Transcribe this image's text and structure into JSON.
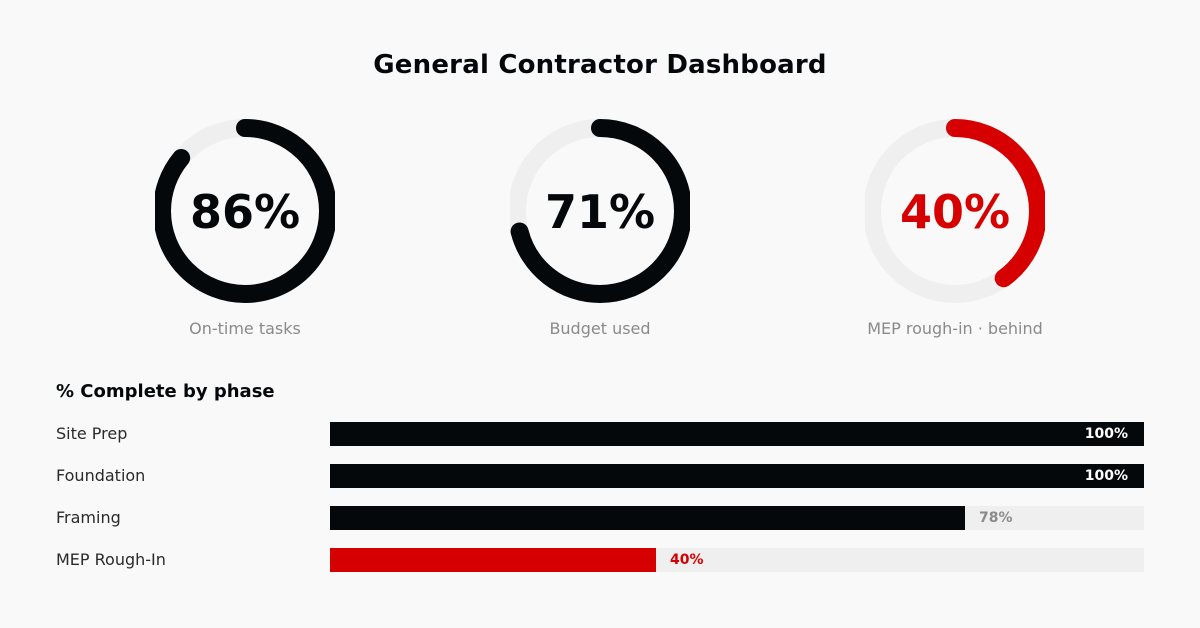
{
  "title": "General Contractor Dashboard",
  "colors": {
    "dark": "#05080b",
    "alert": "#d60000",
    "track": "#efefef",
    "label_muted": "#8a8a8a",
    "outside_label": "#8a8a8a"
  },
  "gauges": [
    {
      "value": 86,
      "value_label": "86%",
      "label": "On-time tasks",
      "status": "normal"
    },
    {
      "value": 71,
      "value_label": "71%",
      "label": "Budget used",
      "status": "normal"
    },
    {
      "value": 40,
      "value_label": "40%",
      "label": "MEP rough-in · behind",
      "status": "alert"
    }
  ],
  "phase_chart": {
    "title": "% Complete by phase",
    "rows": [
      {
        "label": "Site Prep",
        "value": 100,
        "value_label": "100%",
        "status": "normal"
      },
      {
        "label": "Foundation",
        "value": 100,
        "value_label": "100%",
        "status": "normal"
      },
      {
        "label": "Framing",
        "value": 78,
        "value_label": "78%",
        "status": "normal"
      },
      {
        "label": "MEP Rough-In",
        "value": 40,
        "value_label": "40%",
        "status": "alert"
      }
    ]
  },
  "chart_data": [
    {
      "type": "pie",
      "variant": "donut-gauges",
      "title": "",
      "categories": [
        "On-time tasks",
        "Budget used",
        "MEP rough-in · behind"
      ],
      "values": [
        86,
        71,
        40
      ],
      "unit": "%",
      "ylim": [
        0,
        100
      ]
    },
    {
      "type": "bar",
      "orientation": "horizontal",
      "title": "% Complete by phase",
      "categories": [
        "Site Prep",
        "Foundation",
        "Framing",
        "MEP Rough-In"
      ],
      "values": [
        100,
        100,
        78,
        40
      ],
      "unit": "%",
      "xlim": [
        0,
        100
      ],
      "grid": false,
      "legend": "none"
    }
  ]
}
